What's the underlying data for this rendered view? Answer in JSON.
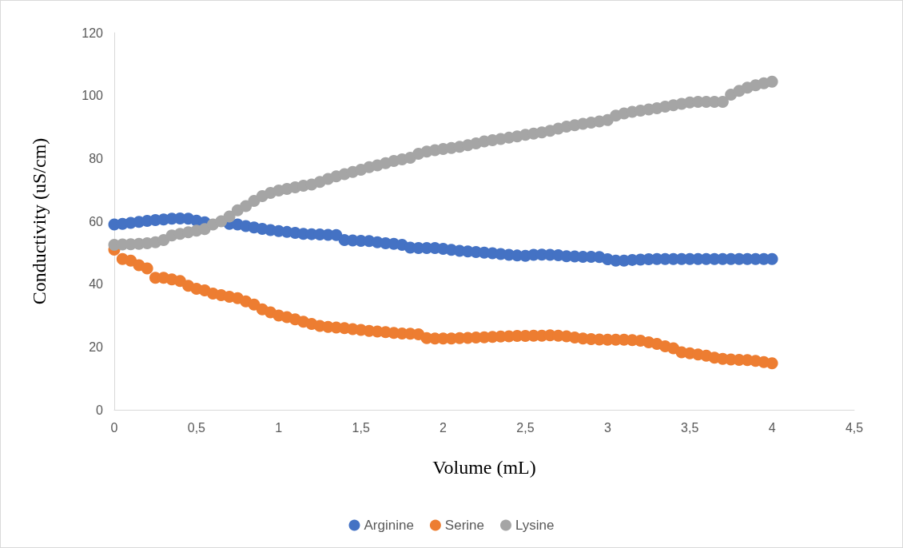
{
  "chart_data": {
    "type": "scatter",
    "xlabel": "Volume (mL)",
    "ylabel": "Conductivity (uS/cm)",
    "x": [
      0,
      0.05,
      0.1,
      0.15,
      0.2,
      0.25,
      0.3,
      0.35,
      0.4,
      0.45,
      0.5,
      0.55,
      0.6,
      0.65,
      0.7,
      0.75,
      0.8,
      0.85,
      0.9,
      0.95,
      1,
      1.05,
      1.1,
      1.15,
      1.2,
      1.25,
      1.3,
      1.35,
      1.4,
      1.45,
      1.5,
      1.55,
      1.6,
      1.65,
      1.7,
      1.75,
      1.8,
      1.85,
      1.9,
      1.95,
      2,
      2.05,
      2.1,
      2.15,
      2.2,
      2.25,
      2.3,
      2.35,
      2.4,
      2.45,
      2.5,
      2.55,
      2.6,
      2.65,
      2.7,
      2.75,
      2.8,
      2.85,
      2.9,
      2.95,
      3,
      3.05,
      3.1,
      3.15,
      3.2,
      3.25,
      3.3,
      3.35,
      3.4,
      3.45,
      3.5,
      3.55,
      3.6,
      3.65,
      3.7,
      3.75,
      3.8,
      3.85,
      3.9,
      3.95,
      4
    ],
    "series": [
      {
        "name": "Arginine",
        "color": "#4472c4",
        "values": [
          59,
          59.2,
          59.5,
          59.8,
          60.1,
          60.4,
          60.6,
          60.8,
          60.9,
          60.8,
          60.2,
          59.7,
          null,
          null,
          59.2,
          59,
          58.5,
          58,
          57.6,
          57.2,
          56.9,
          56.6,
          56.3,
          56,
          55.9,
          55.8,
          55.7,
          55.6,
          54,
          53.9,
          53.8,
          53.7,
          53.3,
          53,
          52.8,
          52.5,
          51.6,
          51.5,
          51.5,
          51.5,
          51.2,
          50.9,
          50.6,
          50.4,
          50.2,
          50,
          49.8,
          49.6,
          49.3,
          49.1,
          49,
          49.3,
          49.4,
          49.3,
          49.2,
          48.9,
          48.8,
          48.7,
          48.7,
          48.6,
          47.9,
          47.5,
          47.5,
          47.7,
          47.8,
          47.9,
          48,
          48,
          48,
          48,
          48,
          48,
          48,
          48,
          48,
          48,
          48,
          48,
          48,
          48,
          48
        ]
      },
      {
        "name": "Serine",
        "color": "#ed7d31",
        "values": [
          51,
          48,
          47.5,
          46,
          45,
          42,
          42,
          41.5,
          41,
          39.5,
          38.5,
          38,
          37,
          36.5,
          36,
          35.5,
          34.5,
          33.5,
          32,
          31,
          30,
          29.5,
          28.8,
          28,
          27.3,
          26.7,
          26.4,
          26.2,
          26,
          25.7,
          25.4,
          25.1,
          24.9,
          24.7,
          24.5,
          24.3,
          24.2,
          24,
          22.8,
          22.7,
          22.7,
          22.7,
          22.8,
          22.9,
          23,
          23.1,
          23.2,
          23.3,
          23.4,
          23.5,
          23.5,
          23.6,
          23.6,
          23.7,
          23.6,
          23.4,
          23,
          22.7,
          22.5,
          22.4,
          22.3,
          22.3,
          22.3,
          22.2,
          22,
          21.5,
          21,
          20.2,
          19.6,
          18.3,
          18,
          17.6,
          17.2,
          16.6,
          16.2,
          16,
          15.9,
          15.8,
          15.6,
          15.2,
          14.8
        ]
      },
      {
        "name": "Lysine",
        "color": "#a5a5a5",
        "values": [
          52.5,
          52.6,
          52.7,
          52.8,
          53,
          53.3,
          54,
          55.5,
          56,
          56.5,
          57,
          57.5,
          59,
          60,
          61.5,
          63.5,
          64.8,
          66.5,
          68,
          69,
          69.8,
          70.3,
          70.8,
          71.3,
          71.7,
          72.5,
          73.5,
          74.3,
          75,
          75.7,
          76.4,
          77.2,
          77.8,
          78.5,
          79.2,
          79.7,
          80.2,
          81.5,
          82.2,
          82.6,
          83,
          83.3,
          83.7,
          84.2,
          84.8,
          85.4,
          85.8,
          86.2,
          86.6,
          87,
          87.5,
          87.9,
          88.3,
          88.8,
          89.5,
          90.1,
          90.6,
          91,
          91.4,
          91.8,
          92.2,
          93.6,
          94.3,
          94.8,
          95.2,
          95.6,
          96,
          96.5,
          96.9,
          97.4,
          97.8,
          98,
          98,
          98,
          98,
          100.3,
          101.5,
          102.5,
          103.3,
          103.9,
          104.4
        ]
      }
    ],
    "xlim": [
      0,
      4.5
    ],
    "xticks": [
      0,
      {
        "value": 0.5,
        "label": "0,5"
      },
      1,
      {
        "value": 1.5,
        "label": "1,5"
      },
      2,
      {
        "value": 2.5,
        "label": "2,5"
      },
      3,
      {
        "value": 3.5,
        "label": "3,5"
      },
      4,
      {
        "value": 4.5,
        "label": "4,5"
      }
    ],
    "ylim": [
      0,
      120
    ],
    "yticks": [
      0,
      20,
      40,
      60,
      80,
      100,
      120
    ],
    "grid": false,
    "legend": "bottom",
    "marker": "circle"
  }
}
